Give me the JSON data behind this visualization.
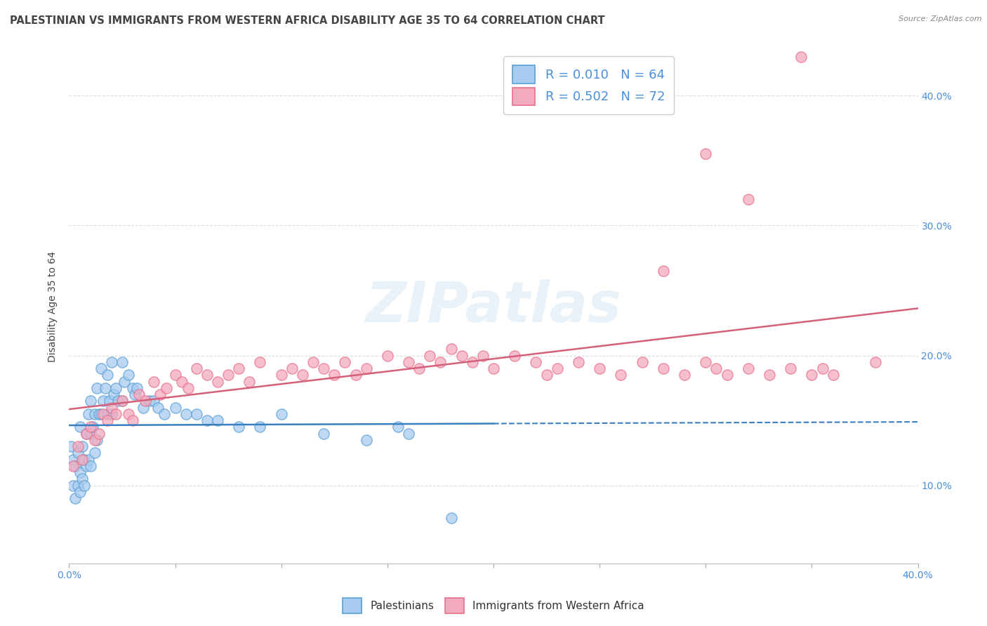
{
  "title": "PALESTINIAN VS IMMIGRANTS FROM WESTERN AFRICA DISABILITY AGE 35 TO 64 CORRELATION CHART",
  "source": "Source: ZipAtlas.com",
  "ylabel": "Disability Age 35 to 64",
  "xlim": [
    0.0,
    0.4
  ],
  "ylim": [
    0.04,
    0.435
  ],
  "x_ticks": [
    0.0,
    0.05,
    0.1,
    0.15,
    0.2,
    0.25,
    0.3,
    0.35,
    0.4
  ],
  "y_tick_labels": [
    "10.0%",
    "20.0%",
    "30.0%",
    "40.0%"
  ],
  "y_ticks": [
    0.1,
    0.2,
    0.3,
    0.4
  ],
  "blue_R": 0.01,
  "blue_N": 64,
  "pink_R": 0.502,
  "pink_N": 72,
  "blue_color": "#A8CCF0",
  "pink_color": "#F4AABE",
  "blue_edge_color": "#5A9FD4",
  "pink_edge_color": "#E8708A",
  "blue_line_color": "#3A7FBF",
  "pink_line_color": "#D4607A",
  "tick_color": "#4A90D9",
  "watermark": "ZIPatlas",
  "legend_blue_label": "Palestinians",
  "legend_pink_label": "Immigrants from Western Africa",
  "blue_scatter_x": [
    0.001,
    0.002,
    0.002,
    0.003,
    0.003,
    0.004,
    0.004,
    0.005,
    0.005,
    0.005,
    0.006,
    0.006,
    0.007,
    0.007,
    0.008,
    0.008,
    0.009,
    0.009,
    0.01,
    0.01,
    0.01,
    0.011,
    0.012,
    0.012,
    0.013,
    0.013,
    0.014,
    0.015,
    0.015,
    0.016,
    0.017,
    0.018,
    0.018,
    0.019,
    0.02,
    0.02,
    0.021,
    0.022,
    0.023,
    0.025,
    0.025,
    0.026,
    0.028,
    0.03,
    0.031,
    0.032,
    0.035,
    0.038,
    0.04,
    0.042,
    0.045,
    0.05,
    0.055,
    0.06,
    0.065,
    0.07,
    0.08,
    0.09,
    0.1,
    0.12,
    0.14,
    0.155,
    0.16,
    0.18
  ],
  "blue_scatter_y": [
    0.13,
    0.12,
    0.1,
    0.115,
    0.09,
    0.125,
    0.1,
    0.145,
    0.11,
    0.095,
    0.13,
    0.105,
    0.12,
    0.1,
    0.14,
    0.115,
    0.155,
    0.12,
    0.165,
    0.14,
    0.115,
    0.145,
    0.155,
    0.125,
    0.175,
    0.135,
    0.155,
    0.19,
    0.155,
    0.165,
    0.175,
    0.185,
    0.155,
    0.165,
    0.195,
    0.155,
    0.17,
    0.175,
    0.165,
    0.195,
    0.165,
    0.18,
    0.185,
    0.175,
    0.17,
    0.175,
    0.16,
    0.165,
    0.165,
    0.16,
    0.155,
    0.16,
    0.155,
    0.155,
    0.15,
    0.15,
    0.145,
    0.145,
    0.155,
    0.14,
    0.135,
    0.145,
    0.14,
    0.075
  ],
  "pink_scatter_x": [
    0.002,
    0.004,
    0.006,
    0.008,
    0.01,
    0.012,
    0.014,
    0.016,
    0.018,
    0.02,
    0.022,
    0.025,
    0.028,
    0.03,
    0.033,
    0.036,
    0.04,
    0.043,
    0.046,
    0.05,
    0.053,
    0.056,
    0.06,
    0.065,
    0.07,
    0.075,
    0.08,
    0.085,
    0.09,
    0.1,
    0.105,
    0.11,
    0.115,
    0.12,
    0.125,
    0.13,
    0.135,
    0.14,
    0.15,
    0.16,
    0.165,
    0.17,
    0.175,
    0.18,
    0.185,
    0.19,
    0.195,
    0.2,
    0.21,
    0.22,
    0.225,
    0.23,
    0.24,
    0.25,
    0.26,
    0.27,
    0.28,
    0.29,
    0.3,
    0.305,
    0.31,
    0.32,
    0.33,
    0.34,
    0.35,
    0.355,
    0.36,
    0.38,
    0.32,
    0.28,
    0.3,
    0.345
  ],
  "pink_scatter_y": [
    0.115,
    0.13,
    0.12,
    0.14,
    0.145,
    0.135,
    0.14,
    0.155,
    0.15,
    0.16,
    0.155,
    0.165,
    0.155,
    0.15,
    0.17,
    0.165,
    0.18,
    0.17,
    0.175,
    0.185,
    0.18,
    0.175,
    0.19,
    0.185,
    0.18,
    0.185,
    0.19,
    0.18,
    0.195,
    0.185,
    0.19,
    0.185,
    0.195,
    0.19,
    0.185,
    0.195,
    0.185,
    0.19,
    0.2,
    0.195,
    0.19,
    0.2,
    0.195,
    0.205,
    0.2,
    0.195,
    0.2,
    0.19,
    0.2,
    0.195,
    0.185,
    0.19,
    0.195,
    0.19,
    0.185,
    0.195,
    0.19,
    0.185,
    0.195,
    0.19,
    0.185,
    0.19,
    0.185,
    0.19,
    0.185,
    0.19,
    0.185,
    0.195,
    0.32,
    0.265,
    0.355,
    0.43
  ],
  "title_fontsize": 10.5,
  "axis_label_fontsize": 10,
  "tick_fontsize": 10,
  "legend_fontsize": 13,
  "background_color": "#FFFFFF",
  "grid_color": "#DDDDDD"
}
